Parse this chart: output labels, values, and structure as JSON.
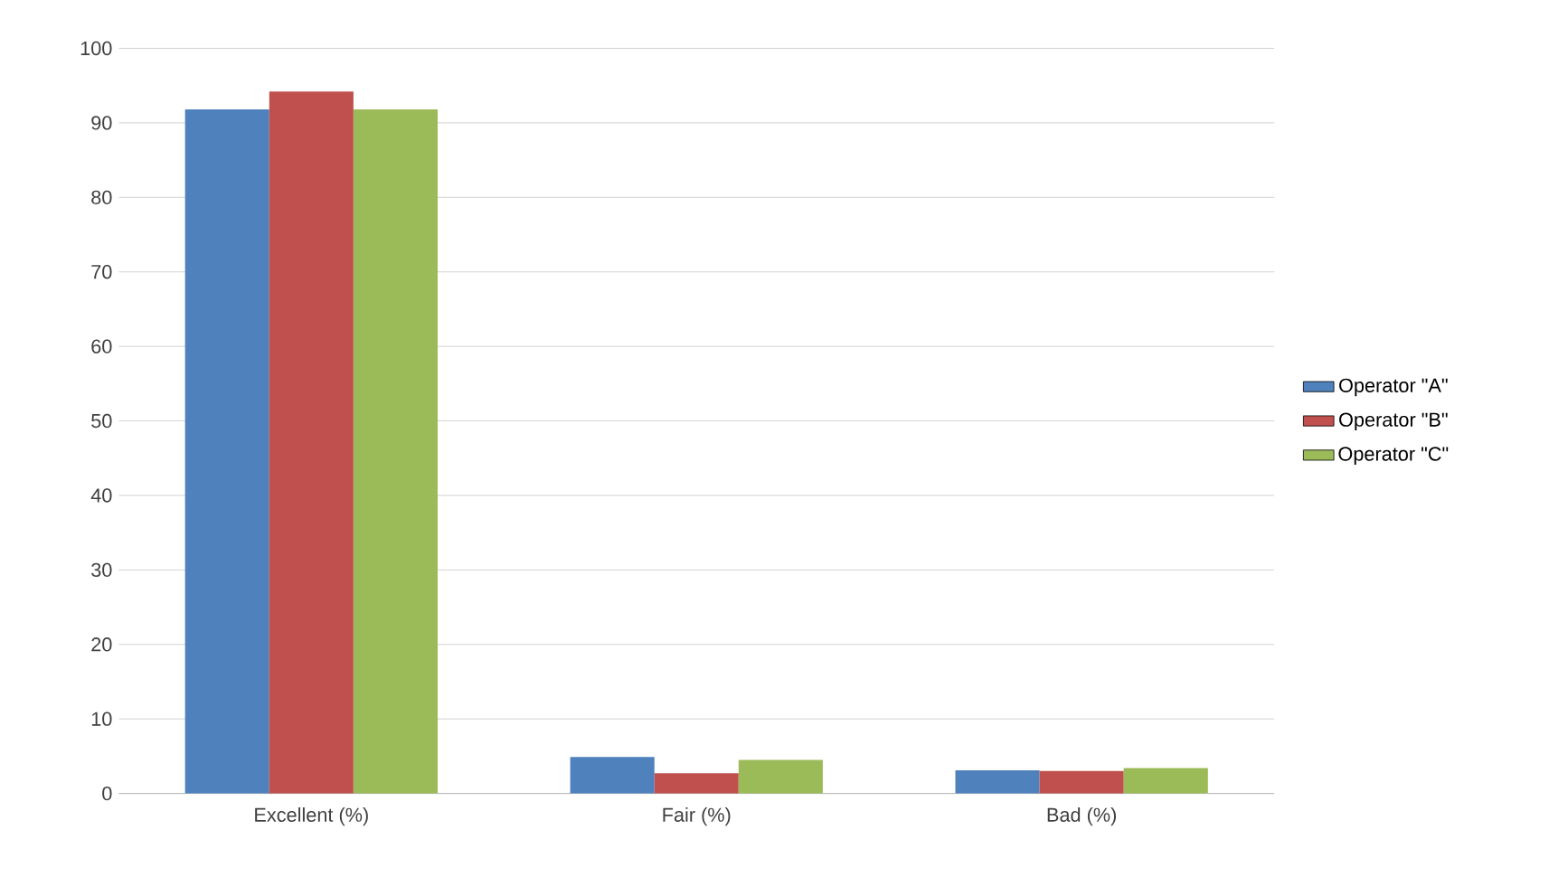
{
  "chart_data": {
    "type": "bar",
    "categories": [
      "Excellent (%)",
      "Fair (%)",
      "Bad (%)"
    ],
    "series": [
      {
        "name": "Operator \"A\"",
        "color": "#4f81bd",
        "values": [
          91.8,
          4.9,
          3.1
        ]
      },
      {
        "name": "Operator \"B\"",
        "color": "#c0504d",
        "values": [
          94.2,
          2.7,
          3.0
        ]
      },
      {
        "name": "Operator \"C\"",
        "color": "#9bbb59",
        "values": [
          91.8,
          4.5,
          3.4
        ]
      }
    ],
    "ylim": [
      0,
      100
    ],
    "yticks": [
      0,
      10,
      20,
      30,
      40,
      50,
      60,
      70,
      80,
      90,
      100
    ],
    "grid": "y",
    "legend": "right"
  }
}
